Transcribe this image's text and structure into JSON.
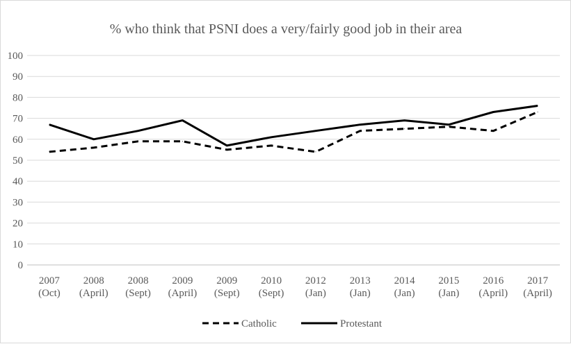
{
  "chart_data": {
    "type": "line",
    "title": "% who think that PSNI does a very/fairly good job in their area",
    "xlabel": "",
    "ylabel": "",
    "categories": [
      [
        "2007",
        "(Oct)"
      ],
      [
        "2008",
        "(April)"
      ],
      [
        "2008",
        "(Sept)"
      ],
      [
        "2009",
        "(April)"
      ],
      [
        "2009",
        "(Sept)"
      ],
      [
        "2010",
        "(Sept)"
      ],
      [
        "2012",
        "(Jan)"
      ],
      [
        "2013",
        "(Jan)"
      ],
      [
        "2014",
        "(Jan)"
      ],
      [
        "2015",
        "(Jan)"
      ],
      [
        "2016",
        "(April)"
      ],
      [
        "2017",
        "(April)"
      ]
    ],
    "ylim": [
      0,
      100
    ],
    "yticks": [
      0,
      10,
      20,
      30,
      40,
      50,
      60,
      70,
      80,
      90,
      100
    ],
    "grid": true,
    "legend_position": "bottom",
    "series": [
      {
        "name": "Catholic",
        "style": "dashed",
        "color": "#000000",
        "values": [
          54,
          56,
          59,
          59,
          55,
          57,
          54,
          64,
          65,
          66,
          64,
          73
        ]
      },
      {
        "name": "Protestant",
        "style": "solid",
        "color": "#000000",
        "values": [
          67,
          60,
          64,
          69,
          57,
          61,
          64,
          67,
          69,
          67,
          73,
          76
        ]
      }
    ]
  }
}
